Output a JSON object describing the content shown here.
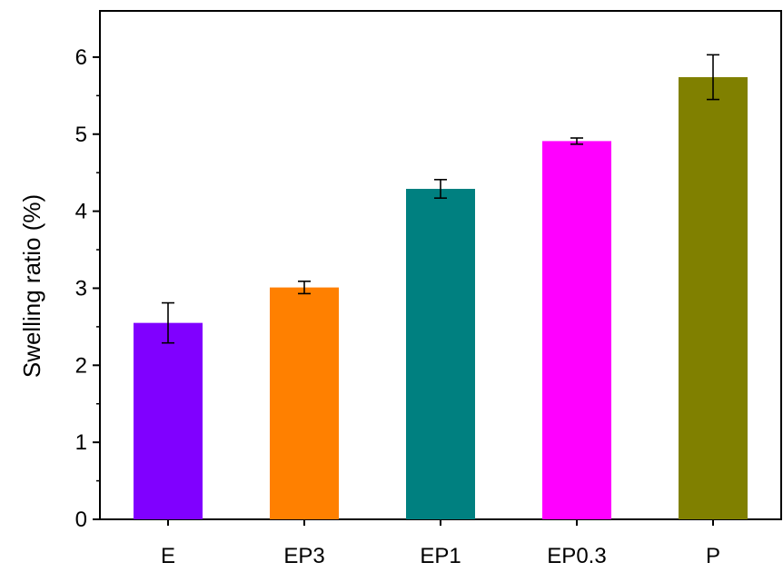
{
  "chart_data": {
    "type": "bar",
    "title": "",
    "xlabel": "",
    "ylabel": "Swelling ratio (%)",
    "ylim": [
      0,
      6.6
    ],
    "yticks": [
      0,
      1,
      2,
      3,
      4,
      5,
      6
    ],
    "ytick_labels": [
      "0",
      "1",
      "2",
      "3",
      "4",
      "5",
      "6"
    ],
    "categories": [
      "E",
      "EP3",
      "EP1",
      "EP0.3",
      "P"
    ],
    "values": [
      2.55,
      3.01,
      4.29,
      4.91,
      5.74
    ],
    "errors": [
      0.26,
      0.08,
      0.12,
      0.04,
      0.29
    ],
    "colors": [
      "#8000ff",
      "#ff8000",
      "#008080",
      "#ff00ff",
      "#808000"
    ],
    "grid": false,
    "legend": "none",
    "frame": "full box"
  }
}
